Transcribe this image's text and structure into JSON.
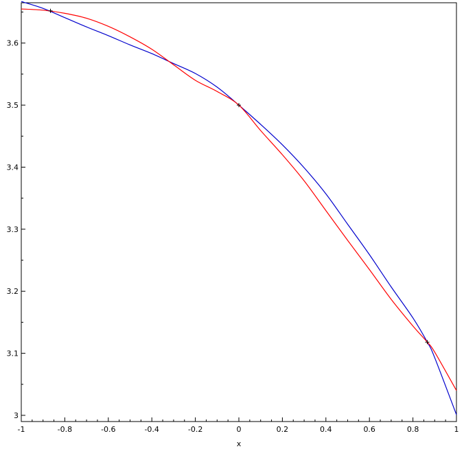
{
  "chart_data": {
    "type": "line",
    "title": "",
    "xlabel": "x",
    "ylabel": "",
    "xlim": [
      -1,
      1
    ],
    "ylim": [
      2.99,
      3.665
    ],
    "x_ticks": [
      -1,
      -0.8,
      -0.6,
      -0.4,
      -0.2,
      0,
      0.2,
      0.4,
      0.6,
      0.8,
      1
    ],
    "x_tick_labels": [
      "-1",
      "-0.8",
      "-0.6",
      "-0.4",
      "-0.2",
      "0",
      "0.2",
      "0.4",
      "0.6",
      "0.8",
      "1"
    ],
    "y_ticks": [
      3,
      3.1,
      3.2,
      3.3,
      3.4,
      3.5,
      3.6
    ],
    "y_tick_labels": [
      "3",
      "3.1",
      "3.2",
      "3.3",
      "3.4",
      "3.5",
      "3.6"
    ],
    "grid": false,
    "legend": "none",
    "series": [
      {
        "color": "#0000cc",
        "x": [
          -1,
          -0.9,
          -0.8,
          -0.7,
          -0.6,
          -0.5,
          -0.4,
          -0.3,
          -0.2,
          -0.1,
          0,
          0.1,
          0.2,
          0.3,
          0.4,
          0.5,
          0.6,
          0.7,
          0.8,
          0.866,
          0.9,
          1
        ],
        "y": [
          3.667,
          3.656,
          3.641,
          3.626,
          3.612,
          3.597,
          3.583,
          3.567,
          3.551,
          3.529,
          3.5,
          3.469,
          3.436,
          3.399,
          3.357,
          3.308,
          3.259,
          3.207,
          3.157,
          3.118,
          3.093,
          3.001
        ]
      },
      {
        "color": "#ff0000",
        "x": [
          -1,
          -0.9,
          -0.8,
          -0.7,
          -0.6,
          -0.5,
          -0.4,
          -0.3,
          -0.2,
          -0.1,
          0,
          0.1,
          0.2,
          0.3,
          0.4,
          0.5,
          0.6,
          0.7,
          0.8,
          0.866,
          0.9,
          1
        ],
        "y": [
          3.655,
          3.653,
          3.648,
          3.64,
          3.627,
          3.61,
          3.59,
          3.565,
          3.54,
          3.522,
          3.5,
          3.459,
          3.42,
          3.378,
          3.33,
          3.282,
          3.235,
          3.187,
          3.144,
          3.118,
          3.102,
          3.04
        ]
      }
    ],
    "markers": {
      "symbol": "+",
      "color": "#000000",
      "x": [
        -0.866,
        0,
        0.866
      ],
      "y": [
        3.652,
        3.5,
        3.118
      ]
    }
  }
}
